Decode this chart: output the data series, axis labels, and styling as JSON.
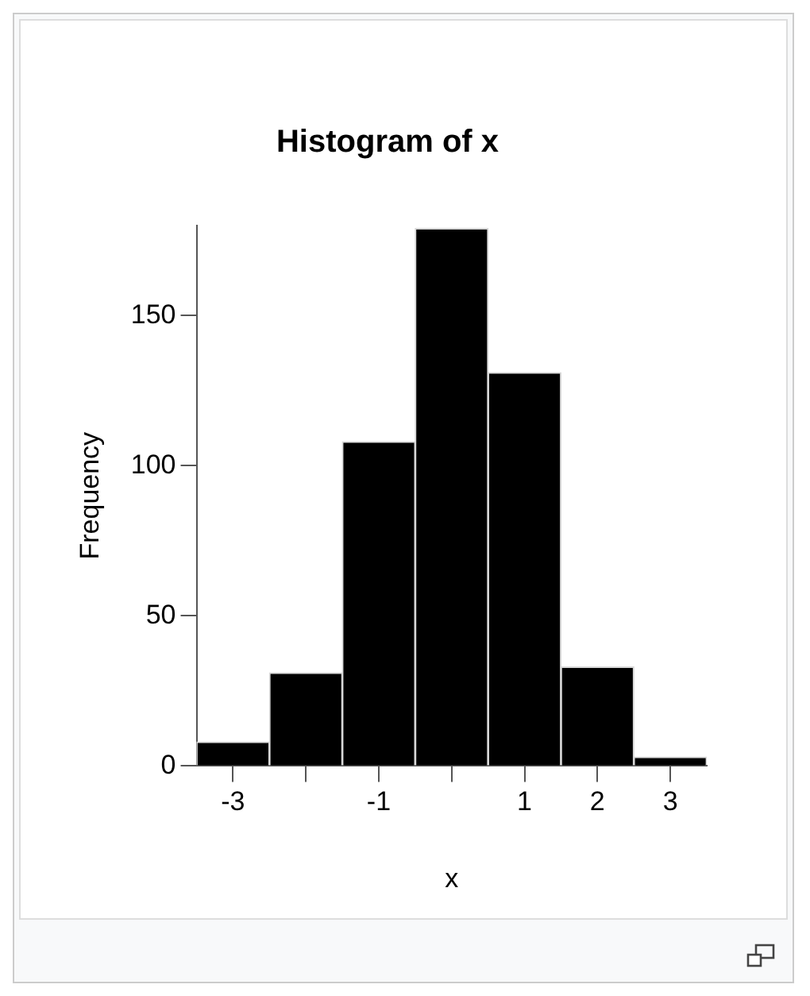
{
  "chart_data": {
    "type": "histogram",
    "title": "Histogram of x",
    "xlabel": "x",
    "ylabel": "Frequency",
    "bins": [
      -3.5,
      -2.5,
      -1.5,
      -0.5,
      0.5,
      1.5,
      2.5,
      3.5
    ],
    "values": [
      8,
      31,
      108,
      179,
      131,
      33,
      3
    ],
    "color": "#000000",
    "xlim": [
      -3.5,
      3.5
    ],
    "xticks": [
      -3,
      {
        "value": -2,
        "label": null
      },
      -1,
      {
        "value": 0,
        "label": null
      },
      1,
      2,
      3
    ],
    "ylim": [
      0,
      180
    ],
    "yticks": [
      0,
      50,
      100,
      150
    ],
    "grid": false
  }
}
